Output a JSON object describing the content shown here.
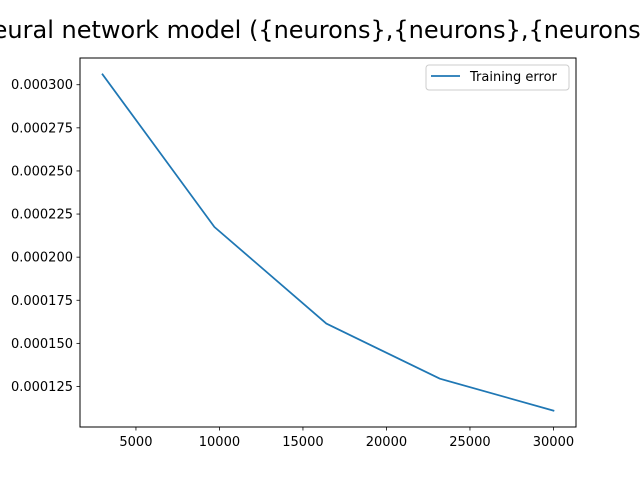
{
  "chart_data": {
    "type": "line",
    "title": "Neural network model ({neurons},{neurons},{neurons})",
    "xlabel": "",
    "ylabel": "",
    "x": [
      3000,
      9700,
      16400,
      23200,
      30000
    ],
    "series": [
      {
        "name": "Training error",
        "color": "#1f77b4",
        "values": [
          0.000306,
          0.0002175,
          0.0001615,
          0.0001295,
          0.000111
        ]
      }
    ],
    "xlim": [
      1650,
      31350
    ],
    "ylim": [
      0.0001015,
      0.0003155
    ],
    "x_ticks": [
      5000,
      10000,
      15000,
      20000,
      25000,
      30000
    ],
    "x_tick_labels": [
      "5000",
      "10000",
      "15000",
      "20000",
      "25000",
      "30000"
    ],
    "y_ticks": [
      0.000125,
      0.00015,
      0.000175,
      0.0002,
      0.000225,
      0.00025,
      0.000275,
      0.0003
    ],
    "y_tick_labels": [
      "0.000125",
      "0.000150",
      "0.000175",
      "0.000200",
      "0.000225",
      "0.000250",
      "0.000275",
      "0.000300"
    ],
    "grid": false,
    "legend": "top-right"
  }
}
